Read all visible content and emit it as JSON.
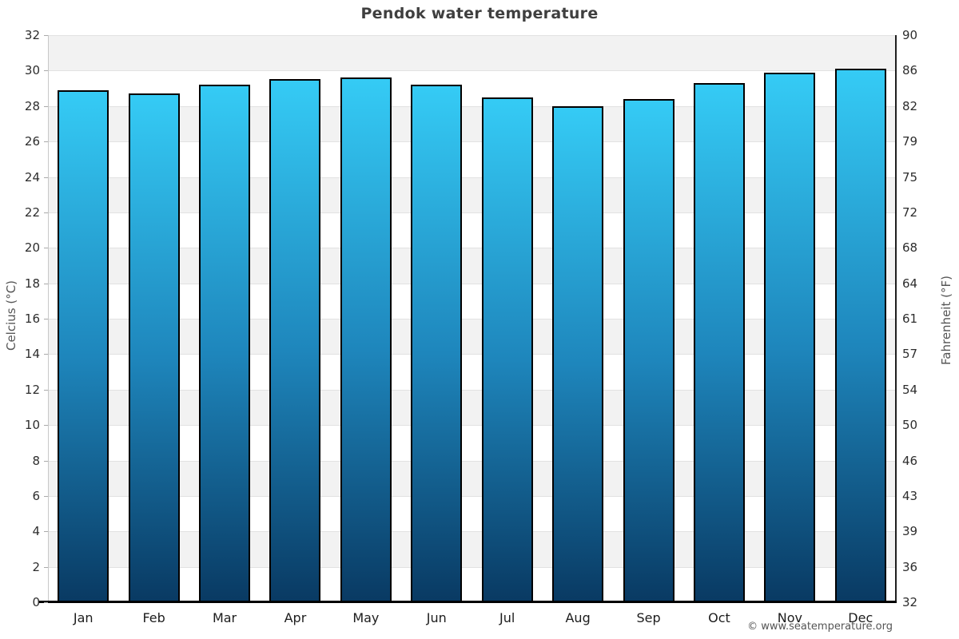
{
  "title": "Pendok water temperature",
  "watermark": "© www.seatemperature.org",
  "chart_data": {
    "type": "bar",
    "title": "Pendok water temperature",
    "categories": [
      "Jan",
      "Feb",
      "Mar",
      "Apr",
      "May",
      "Jun",
      "Jul",
      "Aug",
      "Sep",
      "Oct",
      "Nov",
      "Dec"
    ],
    "values": [
      28.9,
      28.7,
      29.2,
      29.5,
      29.6,
      29.2,
      28.5,
      28.0,
      28.4,
      29.3,
      29.9,
      30.1
    ],
    "unit": "°C",
    "xlabel": "",
    "ylabel_left": "Celcius (°C)",
    "ylabel_right": "Fahrenheit (°F)",
    "ylim": [
      0,
      32
    ],
    "ylim_right": [
      32,
      90
    ],
    "yticks_celsius": [
      0,
      2,
      4,
      6,
      8,
      10,
      12,
      14,
      16,
      18,
      20,
      22,
      24,
      26,
      28,
      30,
      32
    ],
    "yticks_fahrenheit": [
      32,
      36,
      39,
      43,
      46,
      50,
      54,
      57,
      61,
      64,
      68,
      72,
      75,
      79,
      82,
      86,
      90
    ],
    "grid": "horizontal-bands-alternating",
    "legend": "none",
    "colors": {
      "bar_gradient_top": "#35cbf5",
      "bar_gradient_mid": "#1e86bc",
      "bar_gradient_bottom": "#093a63",
      "bar_border": "#000000",
      "band_shade": "#f2f2f2",
      "gridline": "#e2e2e2",
      "baseline": "#000000"
    }
  }
}
